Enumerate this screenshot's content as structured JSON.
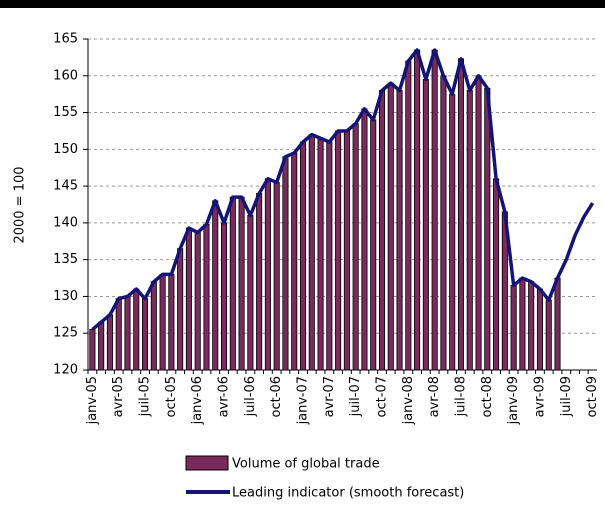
{
  "chart_data": {
    "type": "bar_line",
    "ylabel": "2000 = 100",
    "categories": [
      "janv-05",
      null,
      null,
      "avr-05",
      null,
      null,
      "juil-05",
      null,
      null,
      "oct-05",
      null,
      null,
      "janv-06",
      null,
      null,
      "avr-06",
      null,
      null,
      "juil-06",
      null,
      null,
      "oct-06",
      null,
      null,
      "janv-07",
      null,
      null,
      "avr-07",
      null,
      null,
      "juil-07",
      null,
      null,
      "oct-07",
      null,
      null,
      "janv-08",
      null,
      null,
      "avr-08",
      null,
      null,
      "juil-08",
      null,
      null,
      "oct-08",
      null,
      null,
      "janv-09",
      null,
      null,
      "avr-09",
      null,
      null,
      "juil-09",
      null,
      null,
      "oct-09"
    ],
    "series": [
      {
        "name": "Volume of global trade",
        "type": "bar",
        "color": "#7a2a5c",
        "values": [
          125.5,
          126.5,
          127.5,
          129.7,
          130,
          131,
          129.7,
          132,
          133,
          133,
          136.5,
          139.3,
          138.7,
          139.8,
          143,
          140,
          143.5,
          143.5,
          141,
          144,
          146,
          145.5,
          149,
          149.5,
          151,
          152,
          151.5,
          151,
          152.5,
          152.5,
          153.5,
          155.5,
          154,
          158,
          159,
          158,
          162,
          163.5,
          159.5,
          163.5,
          160,
          157.5,
          162.3,
          158,
          160,
          158.3,
          146,
          141.5,
          131.5,
          132.5,
          132,
          131,
          129.5,
          132.5,
          null,
          null,
          null,
          null
        ]
      },
      {
        "name": "Leading indicator (smooth forecast)",
        "type": "line",
        "color": "#141478",
        "values": [
          125.5,
          126.5,
          127.5,
          129.7,
          130,
          131,
          129.7,
          132,
          133,
          133,
          136.5,
          139.3,
          138.7,
          139.8,
          143,
          140,
          143.5,
          143.5,
          141,
          144,
          146,
          145.5,
          149,
          149.5,
          151,
          152,
          151.5,
          151,
          152.5,
          152.5,
          153.5,
          155.5,
          154,
          158,
          159,
          158,
          162,
          163.5,
          159.5,
          163.5,
          160,
          157.5,
          162.3,
          158,
          160,
          158.3,
          146,
          141.5,
          131.5,
          132.5,
          132,
          131,
          129.5,
          132.5,
          135,
          138.3,
          140.8,
          142.7
        ]
      }
    ],
    "ylim": [
      120,
      165
    ],
    "yticks": [
      120,
      125,
      130,
      135,
      140,
      145,
      150,
      155,
      160,
      165
    ],
    "grid": true
  }
}
